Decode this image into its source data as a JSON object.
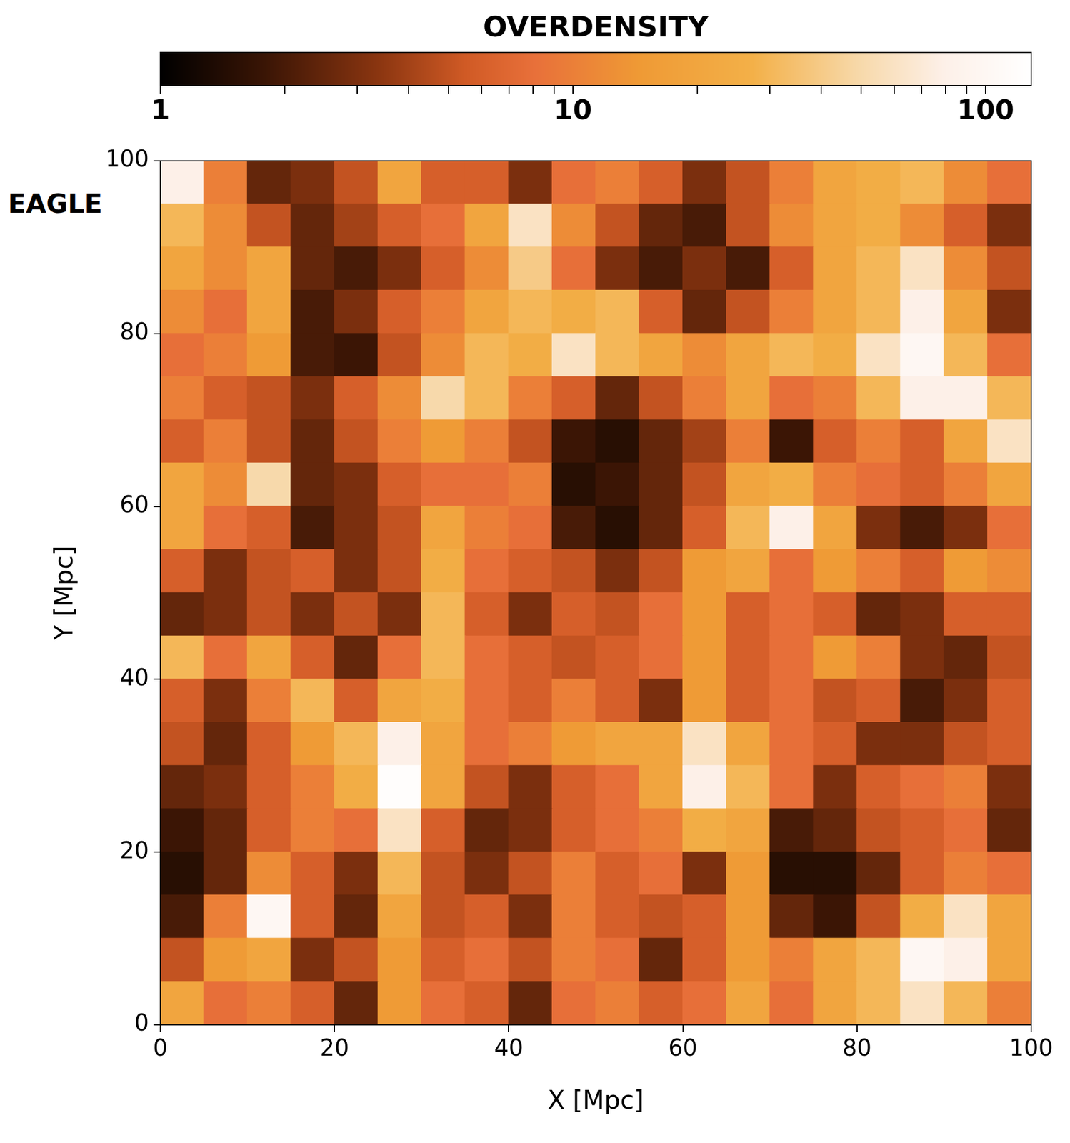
{
  "chart_data": {
    "type": "heatmap",
    "annotation": "EAGLE",
    "xlabel": "X [Mpc]",
    "ylabel": "Y [Mpc]",
    "x": [
      2.5,
      7.5,
      12.5,
      17.5,
      22.5,
      27.5,
      32.5,
      37.5,
      42.5,
      47.5,
      52.5,
      57.5,
      62.5,
      67.5,
      72.5,
      77.5,
      82.5,
      87.5,
      92.5,
      97.5
    ],
    "y": [
      97.5,
      92.5,
      87.5,
      82.5,
      77.5,
      72.5,
      67.5,
      62.5,
      57.5,
      52.5,
      47.5,
      42.5,
      37.5,
      32.5,
      27.5,
      22.5,
      17.5,
      12.5,
      7.5,
      2.5
    ],
    "cells": [
      [
        80,
        10,
        2.5,
        3,
        5,
        20,
        6,
        6,
        3,
        8,
        10,
        6,
        3,
        5,
        10,
        20,
        25,
        30,
        12,
        8
      ],
      [
        30,
        12,
        5,
        2.5,
        4,
        6,
        8,
        20,
        60,
        12,
        5,
        2.5,
        2,
        5,
        12,
        20,
        25,
        12,
        6,
        3
      ],
      [
        20,
        12,
        20,
        2.5,
        2,
        3,
        6,
        12,
        40,
        8,
        3,
        2,
        3,
        2,
        6,
        20,
        30,
        60,
        12,
        5
      ],
      [
        12,
        8,
        20,
        2,
        3,
        6,
        10,
        20,
        30,
        25,
        30,
        6,
        2.5,
        5,
        10,
        20,
        30,
        80,
        20,
        3
      ],
      [
        8,
        10,
        15,
        2,
        1.8,
        5,
        12,
        30,
        25,
        60,
        30,
        20,
        12,
        20,
        30,
        25,
        60,
        100,
        30,
        8
      ],
      [
        10,
        6,
        5,
        3,
        6,
        12,
        50,
        30,
        10,
        6,
        2.5,
        5,
        10,
        20,
        8,
        10,
        30,
        80,
        80,
        30
      ],
      [
        6,
        10,
        5,
        2.5,
        5,
        10,
        15,
        10,
        5,
        1.8,
        1.5,
        2.5,
        4,
        10,
        1.8,
        6,
        10,
        6,
        20,
        60
      ],
      [
        20,
        12,
        50,
        2.5,
        3,
        6,
        8,
        8,
        10,
        1.5,
        1.8,
        2.5,
        5,
        20,
        25,
        10,
        8,
        6,
        10,
        20
      ],
      [
        20,
        8,
        6,
        2,
        3,
        5,
        20,
        10,
        8,
        2,
        1.5,
        2.5,
        6,
        30,
        80,
        20,
        3,
        2,
        3,
        8
      ],
      [
        6,
        3,
        5,
        6,
        3,
        5,
        25,
        8,
        6,
        5,
        3,
        5,
        15,
        20,
        8,
        15,
        10,
        6,
        15,
        12
      ],
      [
        2.5,
        3,
        5,
        3,
        5,
        3,
        30,
        6,
        3,
        6,
        5,
        8,
        15,
        6,
        8,
        6,
        2.5,
        3,
        6,
        6
      ],
      [
        30,
        8,
        20,
        6,
        2.5,
        8,
        30,
        8,
        6,
        5,
        6,
        8,
        15,
        6,
        8,
        15,
        10,
        3,
        2.5,
        5
      ],
      [
        6,
        3,
        10,
        30,
        6,
        20,
        25,
        8,
        6,
        10,
        6,
        3,
        15,
        6,
        8,
        5,
        6,
        2,
        3,
        6
      ],
      [
        5,
        2.5,
        6,
        15,
        30,
        80,
        20,
        8,
        10,
        15,
        20,
        20,
        60,
        20,
        8,
        6,
        3,
        3,
        5,
        6
      ],
      [
        2.5,
        3,
        6,
        10,
        25,
        120,
        20,
        5,
        3,
        6,
        8,
        20,
        80,
        30,
        8,
        3,
        6,
        8,
        10,
        3
      ],
      [
        1.8,
        2.5,
        6,
        10,
        8,
        60,
        6,
        2.5,
        3,
        6,
        8,
        10,
        25,
        20,
        2,
        2.5,
        5,
        6,
        8,
        2.5
      ],
      [
        1.5,
        2.5,
        12,
        6,
        3,
        30,
        5,
        3,
        5,
        10,
        6,
        8,
        3,
        15,
        1.5,
        1.5,
        2.5,
        6,
        10,
        8
      ],
      [
        2,
        10,
        100,
        6,
        2.5,
        20,
        5,
        6,
        3,
        10,
        6,
        5,
        6,
        15,
        2.5,
        1.8,
        5,
        25,
        60,
        20
      ],
      [
        5,
        15,
        20,
        3,
        5,
        15,
        6,
        8,
        5,
        10,
        8,
        2.5,
        6,
        15,
        10,
        20,
        30,
        100,
        80,
        20
      ],
      [
        20,
        8,
        10,
        6,
        2.5,
        15,
        8,
        6,
        2.5,
        8,
        10,
        6,
        8,
        20,
        8,
        20,
        30,
        60,
        30,
        10
      ]
    ],
    "xlim": [
      0,
      100
    ],
    "ylim": [
      0,
      100
    ],
    "xticks": [
      0,
      20,
      40,
      60,
      80,
      100
    ],
    "yticks": [
      0,
      20,
      40,
      60,
      80,
      100
    ],
    "grid": false,
    "colorbar": {
      "label": "OVERDENSITY",
      "range": [
        1,
        129
      ],
      "log": true,
      "ticks": [
        1,
        10,
        100
      ],
      "minor_ticks": [
        2,
        3,
        4,
        5,
        6,
        7,
        8,
        9,
        20,
        30,
        40,
        50,
        60,
        70,
        80,
        90
      ]
    }
  }
}
